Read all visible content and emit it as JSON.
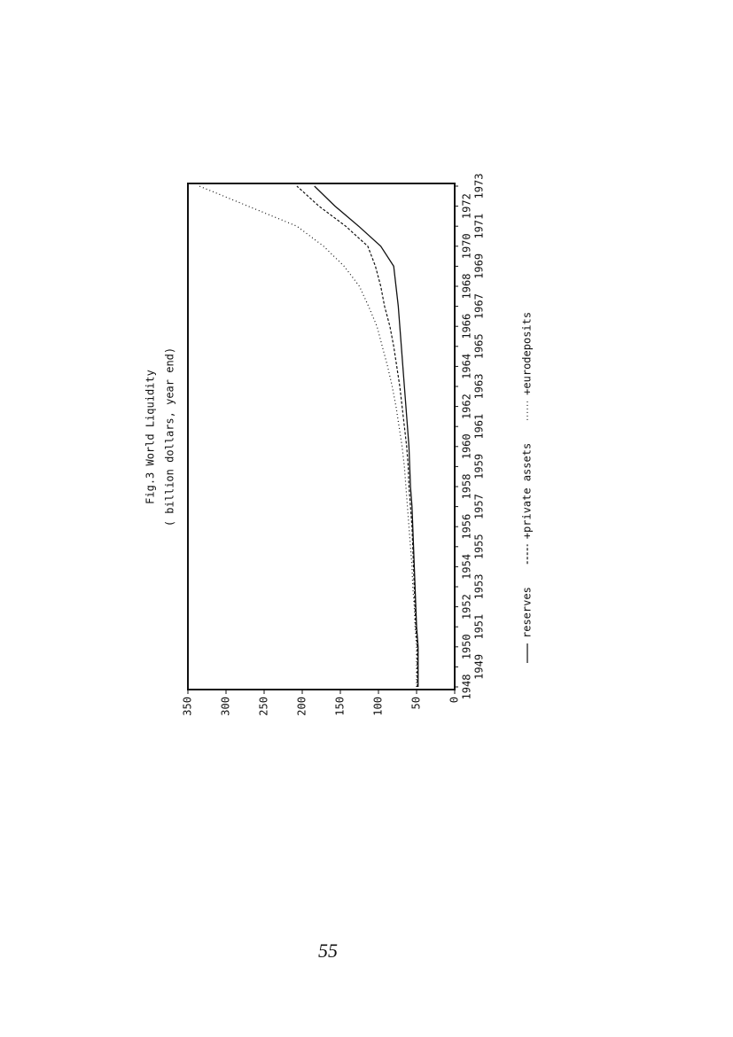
{
  "chart_data": {
    "type": "line",
    "title": "Fig.3  World Liquidity",
    "subtitle": "( billion dollars, year end)",
    "categories": [
      "1948",
      "1949",
      "1950",
      "1951",
      "1952",
      "1953",
      "1954",
      "1955",
      "1956",
      "1957",
      "1958",
      "1959",
      "1960",
      "1961",
      "1962",
      "1963",
      "1964",
      "1965",
      "1966",
      "1967",
      "1968",
      "1969",
      "1970",
      "1971",
      "1972",
      "1973"
    ],
    "series": [
      {
        "name": "reserves",
        "color": "#111111",
        "style": "solid",
        "values": [
          48,
          48,
          48,
          50,
          51,
          52,
          53,
          54,
          55,
          56,
          58,
          59,
          60,
          62,
          64,
          66,
          68,
          70,
          72,
          74,
          77,
          80,
          97,
          126,
          157,
          184
        ]
      },
      {
        "name": "+private assets",
        "color": "#111111",
        "style": "dashed",
        "values": [
          49,
          49,
          49,
          51,
          52,
          53,
          54,
          55,
          56,
          58,
          60,
          61,
          63,
          66,
          69,
          72,
          76,
          80,
          85,
          92,
          97,
          104,
          114,
          143,
          178,
          207
        ]
      },
      {
        "name": "+eurodeposits",
        "color": "#111111",
        "style": "dotted",
        "values": [
          50,
          50,
          50,
          52,
          53,
          55,
          56,
          58,
          60,
          62,
          64,
          66,
          69,
          73,
          77,
          82,
          88,
          95,
          102,
          113,
          125,
          145,
          172,
          207,
          271,
          335
        ]
      }
    ],
    "ylim": [
      0,
      350
    ],
    "yticks": [
      0,
      50,
      100,
      150,
      200,
      250,
      300,
      350
    ],
    "grid": false
  },
  "page_number": "55"
}
